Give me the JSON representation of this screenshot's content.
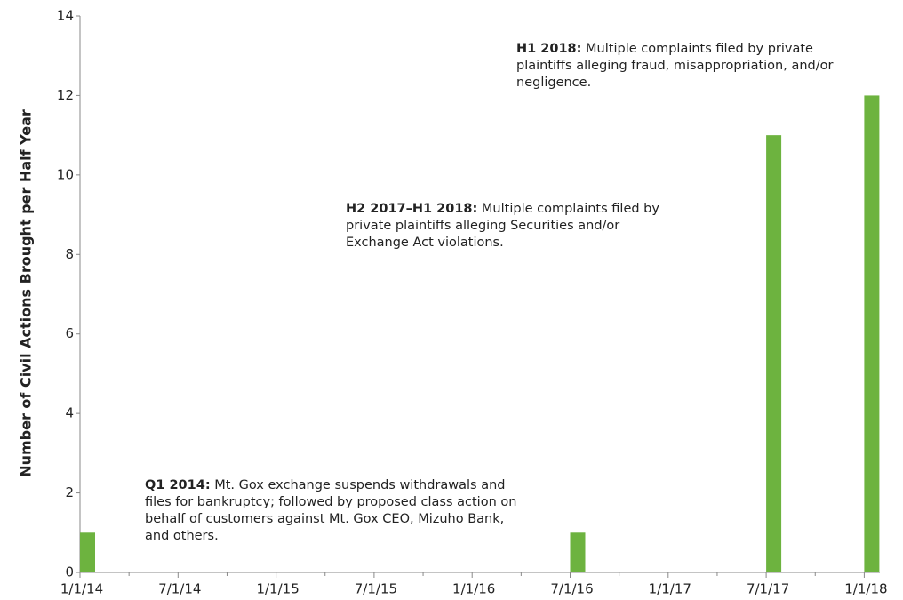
{
  "chart_data": {
    "type": "bar",
    "ylabel": "Number of Civil Actions Brought per Half Year",
    "categories": [
      "1/1/14",
      "7/1/14",
      "1/1/15",
      "7/1/15",
      "1/1/16",
      "7/1/16",
      "1/1/17",
      "7/1/17",
      "1/1/18"
    ],
    "values": [
      1,
      0,
      0,
      0,
      0,
      1,
      0,
      11,
      12
    ],
    "color": "#6db33f",
    "ylim": [
      0,
      14
    ],
    "yticks": [
      0,
      2,
      4,
      6,
      8,
      10,
      12,
      14
    ],
    "grid": false,
    "annotations": [
      {
        "label": "Q1 2014:",
        "text": "Mt. Gox exchange suspends withdrawals and files for bankruptcy; followed by proposed class action on behalf of customers against Mt. Gox CEO, Mizuho Bank, and others."
      },
      {
        "label": "H2 2017–H1 2018:",
        "text": "Multiple complaints filed by private plaintiffs alleging Securities and/or Exchange Act violations."
      },
      {
        "label": "H1 2018:",
        "text": "Multiple complaints filed by private plaintiffs alleging fraud, misappropriation, and/or negligence."
      }
    ]
  }
}
